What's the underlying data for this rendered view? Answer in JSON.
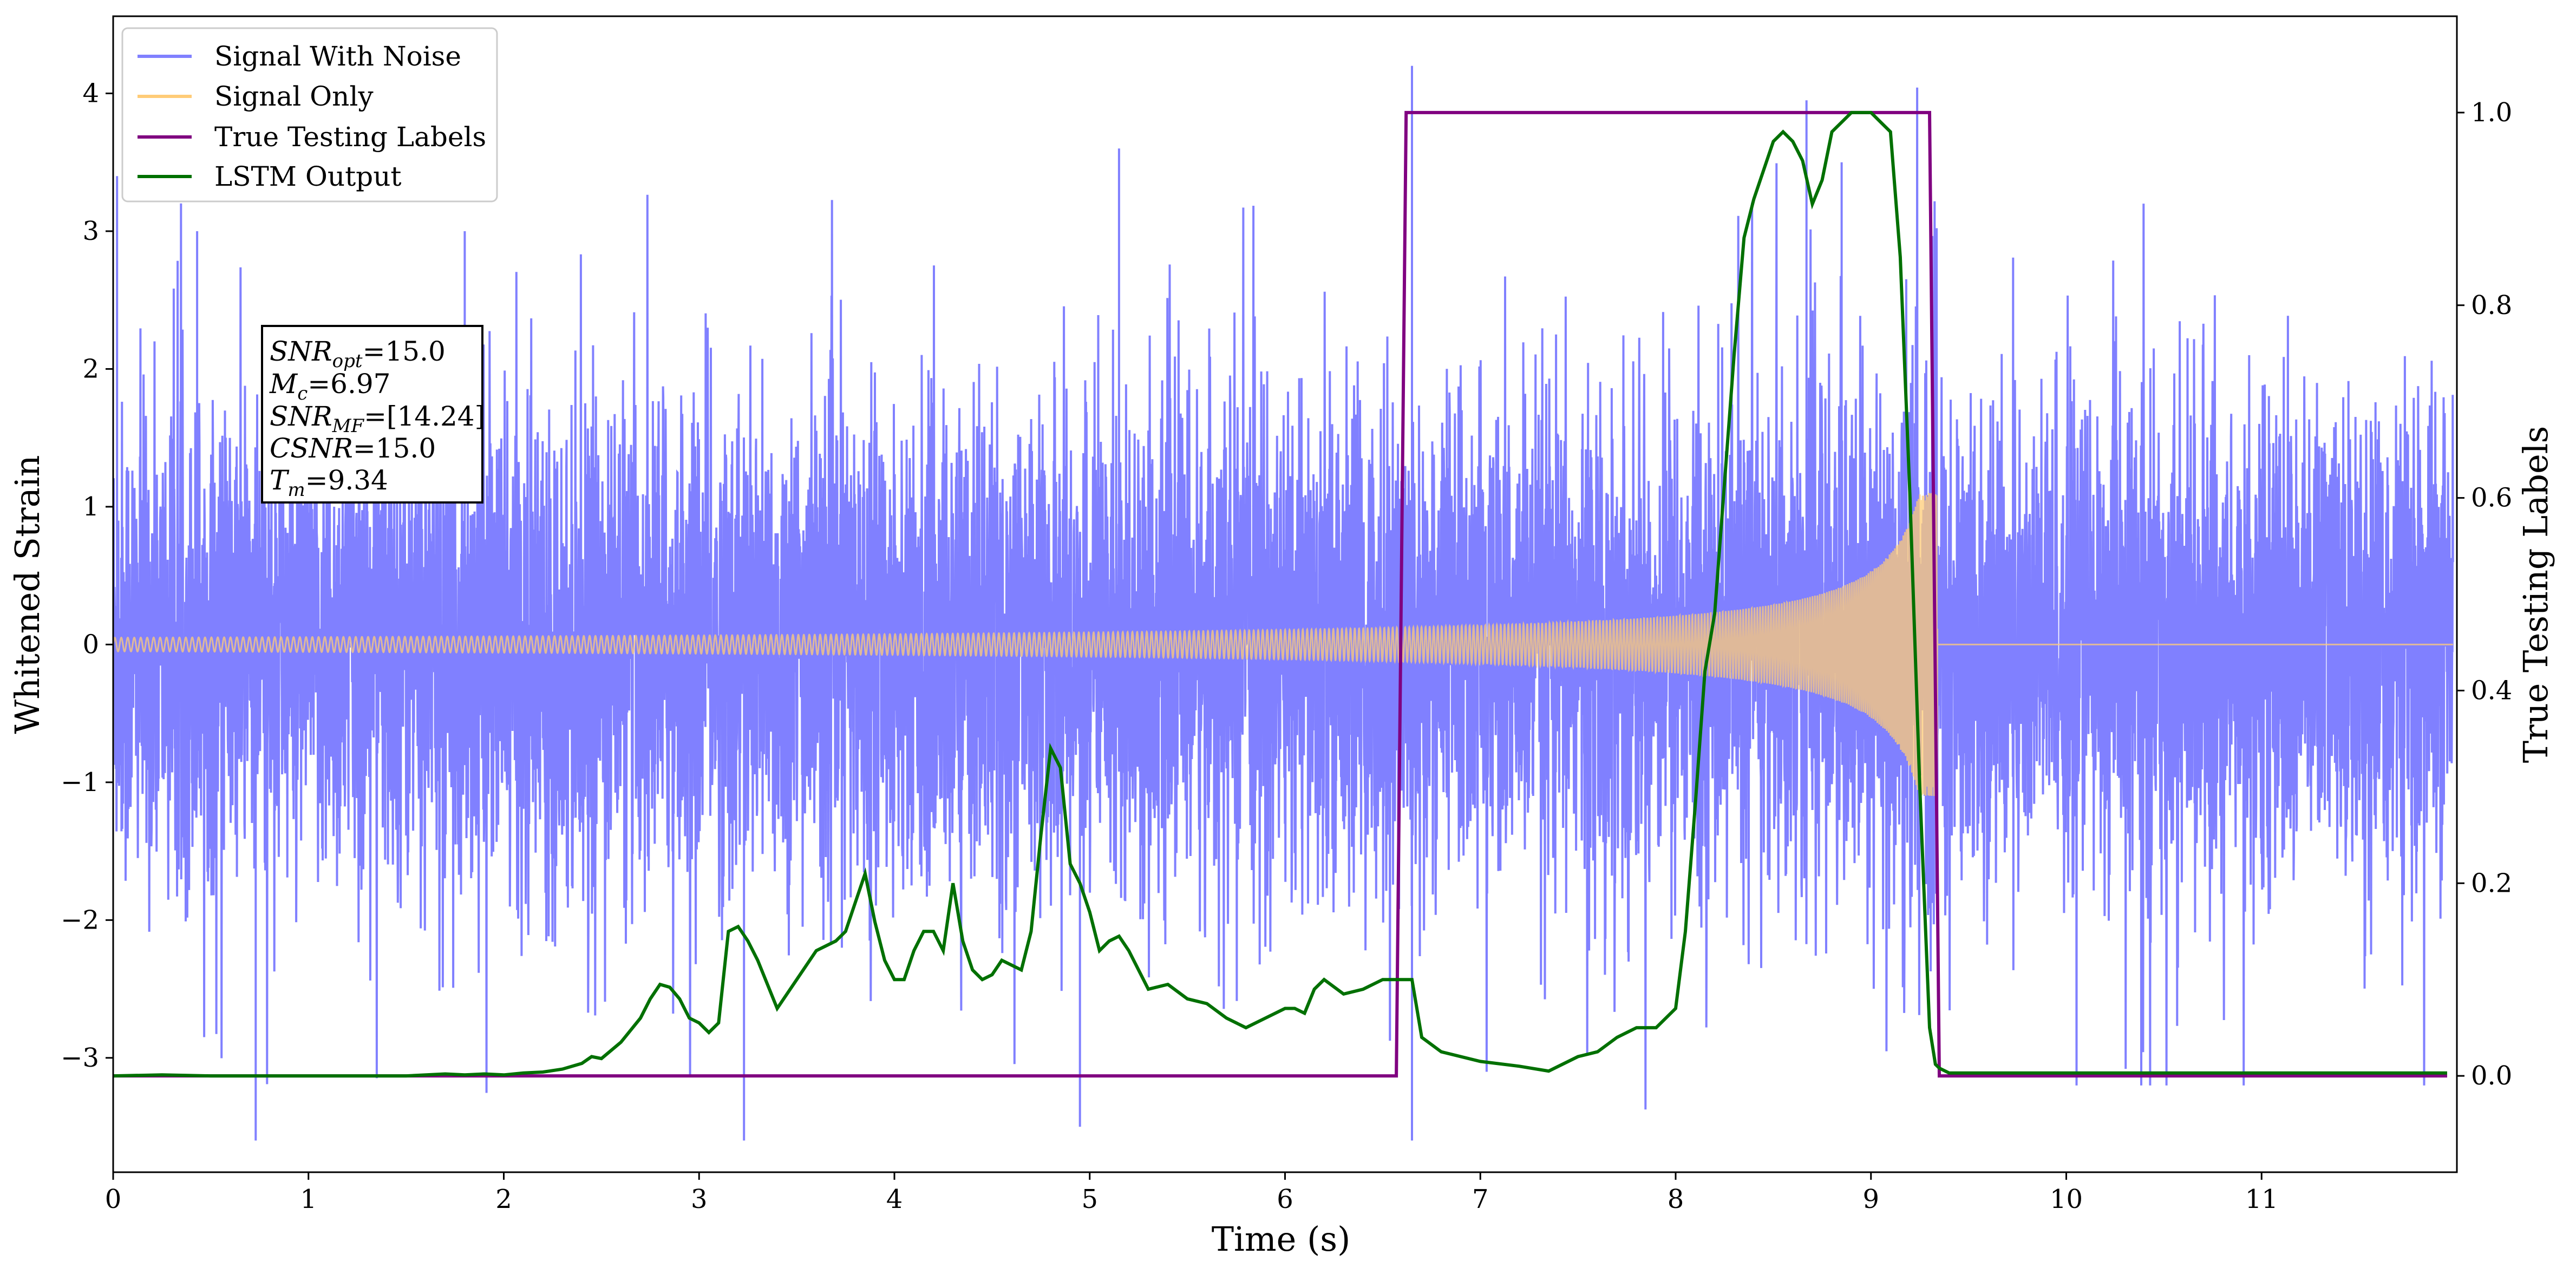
{
  "chart_data": {
    "type": "line",
    "xlabel": "Time (s)",
    "ylabel": "Whitened Strain",
    "y2label": "True Testing Labels",
    "xlim": [
      0,
      12
    ],
    "ylim": [
      -3.83,
      4.56
    ],
    "y2lim": [
      -0.1,
      1.1
    ],
    "x_ticks": [
      0,
      1,
      2,
      3,
      4,
      5,
      6,
      7,
      8,
      9,
      10,
      11
    ],
    "y_ticks": [
      -3,
      -2,
      -1,
      0,
      1,
      2,
      3,
      4
    ],
    "y2_ticks": [
      0.0,
      0.2,
      0.4,
      0.6,
      0.8,
      1.0
    ],
    "x_tick_labels": [
      "0",
      "1",
      "2",
      "3",
      "4",
      "5",
      "6",
      "7",
      "8",
      "9",
      "10",
      "11"
    ],
    "y_tick_labels": [
      "−3",
      "−2",
      "−1",
      "0",
      "1",
      "2",
      "3",
      "4"
    ],
    "y2_tick_labels": [
      "0.0",
      "0.2",
      "0.4",
      "0.6",
      "0.8",
      "1.0"
    ],
    "grid": false,
    "legend_position": "top-left",
    "colors": {
      "noise": "#8080ff",
      "signal": "#ffcc77",
      "labels": "#800080",
      "lstm": "#007000"
    },
    "series": [
      {
        "name": "Signal With Noise",
        "axis": "left",
        "note": "dense random noise plus signal, roughly |y| ~ 1.5 typical with spikes up to about 4.2 and -3.6",
        "spikes": [
          {
            "x": 0.73,
            "y": -3.6
          },
          {
            "x": 3.23,
            "y": -3.6
          },
          {
            "x": 6.65,
            "y": 4.2
          },
          {
            "x": 6.65,
            "y": -3.6
          },
          {
            "x": 8.67,
            "y": 3.95
          },
          {
            "x": 4.95,
            "y": -3.5
          },
          {
            "x": 0.02,
            "y": 3.4
          },
          {
            "x": 0.43,
            "y": 3.0
          },
          {
            "x": 1.8,
            "y": 3.0
          },
          {
            "x": 5.15,
            "y": 3.6
          },
          {
            "x": 8.85,
            "y": 3.5
          }
        ]
      },
      {
        "name": "Signal Only",
        "axis": "left",
        "chirp": {
          "t_start": 0,
          "t_merge": 9.34,
          "amp_start": 0.05,
          "amp_end": 1.1,
          "freq_start": 30,
          "freq_end": 300
        }
      },
      {
        "name": "True Testing Labels",
        "axis": "right",
        "x": [
          0,
          6.57,
          6.62,
          9.3,
          9.35,
          11.95
        ],
        "y": [
          0,
          0,
          1,
          1,
          0,
          0
        ]
      },
      {
        "name": "LSTM Output",
        "axis": "right",
        "x": [
          0.0,
          0.25,
          0.5,
          1.0,
          1.5,
          1.7,
          1.8,
          1.9,
          2.0,
          2.1,
          2.2,
          2.3,
          2.4,
          2.45,
          2.5,
          2.6,
          2.7,
          2.75,
          2.8,
          2.85,
          2.9,
          2.95,
          3.0,
          3.05,
          3.1,
          3.15,
          3.2,
          3.25,
          3.3,
          3.4,
          3.5,
          3.6,
          3.7,
          3.75,
          3.8,
          3.85,
          3.9,
          3.95,
          4.0,
          4.05,
          4.1,
          4.15,
          4.2,
          4.25,
          4.3,
          4.35,
          4.4,
          4.45,
          4.5,
          4.55,
          4.6,
          4.65,
          4.7,
          4.75,
          4.8,
          4.85,
          4.9,
          4.95,
          5.0,
          5.05,
          5.1,
          5.15,
          5.2,
          5.3,
          5.4,
          5.5,
          5.6,
          5.7,
          5.8,
          5.9,
          6.0,
          6.05,
          6.1,
          6.15,
          6.2,
          6.3,
          6.4,
          6.5,
          6.6,
          6.65,
          6.7,
          6.8,
          7.0,
          7.2,
          7.35,
          7.5,
          7.6,
          7.7,
          7.8,
          7.9,
          8.0,
          8.05,
          8.1,
          8.15,
          8.2,
          8.3,
          8.35,
          8.4,
          8.5,
          8.55,
          8.6,
          8.65,
          8.7,
          8.75,
          8.8,
          8.85,
          8.9,
          9.0,
          9.05,
          9.1,
          9.15,
          9.2,
          9.25,
          9.3,
          9.33,
          9.35,
          9.4,
          11.95
        ],
        "y": [
          0.0,
          0.001,
          0.0,
          0.0,
          0.0,
          0.002,
          0.001,
          0.002,
          0.001,
          0.003,
          0.004,
          0.007,
          0.013,
          0.02,
          0.018,
          0.035,
          0.06,
          0.08,
          0.095,
          0.092,
          0.08,
          0.06,
          0.055,
          0.045,
          0.055,
          0.15,
          0.155,
          0.14,
          0.12,
          0.07,
          0.1,
          0.13,
          0.14,
          0.15,
          0.18,
          0.21,
          0.16,
          0.12,
          0.1,
          0.1,
          0.13,
          0.15,
          0.15,
          0.13,
          0.2,
          0.14,
          0.11,
          0.1,
          0.105,
          0.12,
          0.115,
          0.11,
          0.15,
          0.25,
          0.34,
          0.32,
          0.22,
          0.2,
          0.17,
          0.13,
          0.14,
          0.145,
          0.13,
          0.09,
          0.095,
          0.08,
          0.075,
          0.06,
          0.05,
          0.06,
          0.07,
          0.07,
          0.065,
          0.09,
          0.1,
          0.085,
          0.09,
          0.1,
          0.1,
          0.1,
          0.04,
          0.025,
          0.015,
          0.01,
          0.005,
          0.02,
          0.025,
          0.04,
          0.05,
          0.05,
          0.07,
          0.15,
          0.28,
          0.42,
          0.48,
          0.75,
          0.87,
          0.91,
          0.97,
          0.98,
          0.97,
          0.95,
          0.905,
          0.93,
          0.98,
          0.99,
          1.0,
          1.0,
          0.99,
          0.98,
          0.85,
          0.6,
          0.3,
          0.05,
          0.012,
          0.008,
          0.003,
          0.003
        ]
      }
    ],
    "annotation": {
      "snr_opt": {
        "base": "SNR",
        "sub": "opt",
        "value": "=15.0"
      },
      "mc": {
        "base": "M",
        "sub": "c",
        "value": "=6.97"
      },
      "snr_mf": {
        "base": "SNR",
        "sub": "MF",
        "value": "=[14.24]"
      },
      "csnr": {
        "base": "CSNR",
        "value": "=15.0"
      },
      "tm": {
        "base": "T",
        "sub": "m",
        "value": "=9.34"
      }
    },
    "legend": [
      "Signal With Noise",
      "Signal Only",
      "True Testing Labels",
      "LSTM Output"
    ]
  }
}
